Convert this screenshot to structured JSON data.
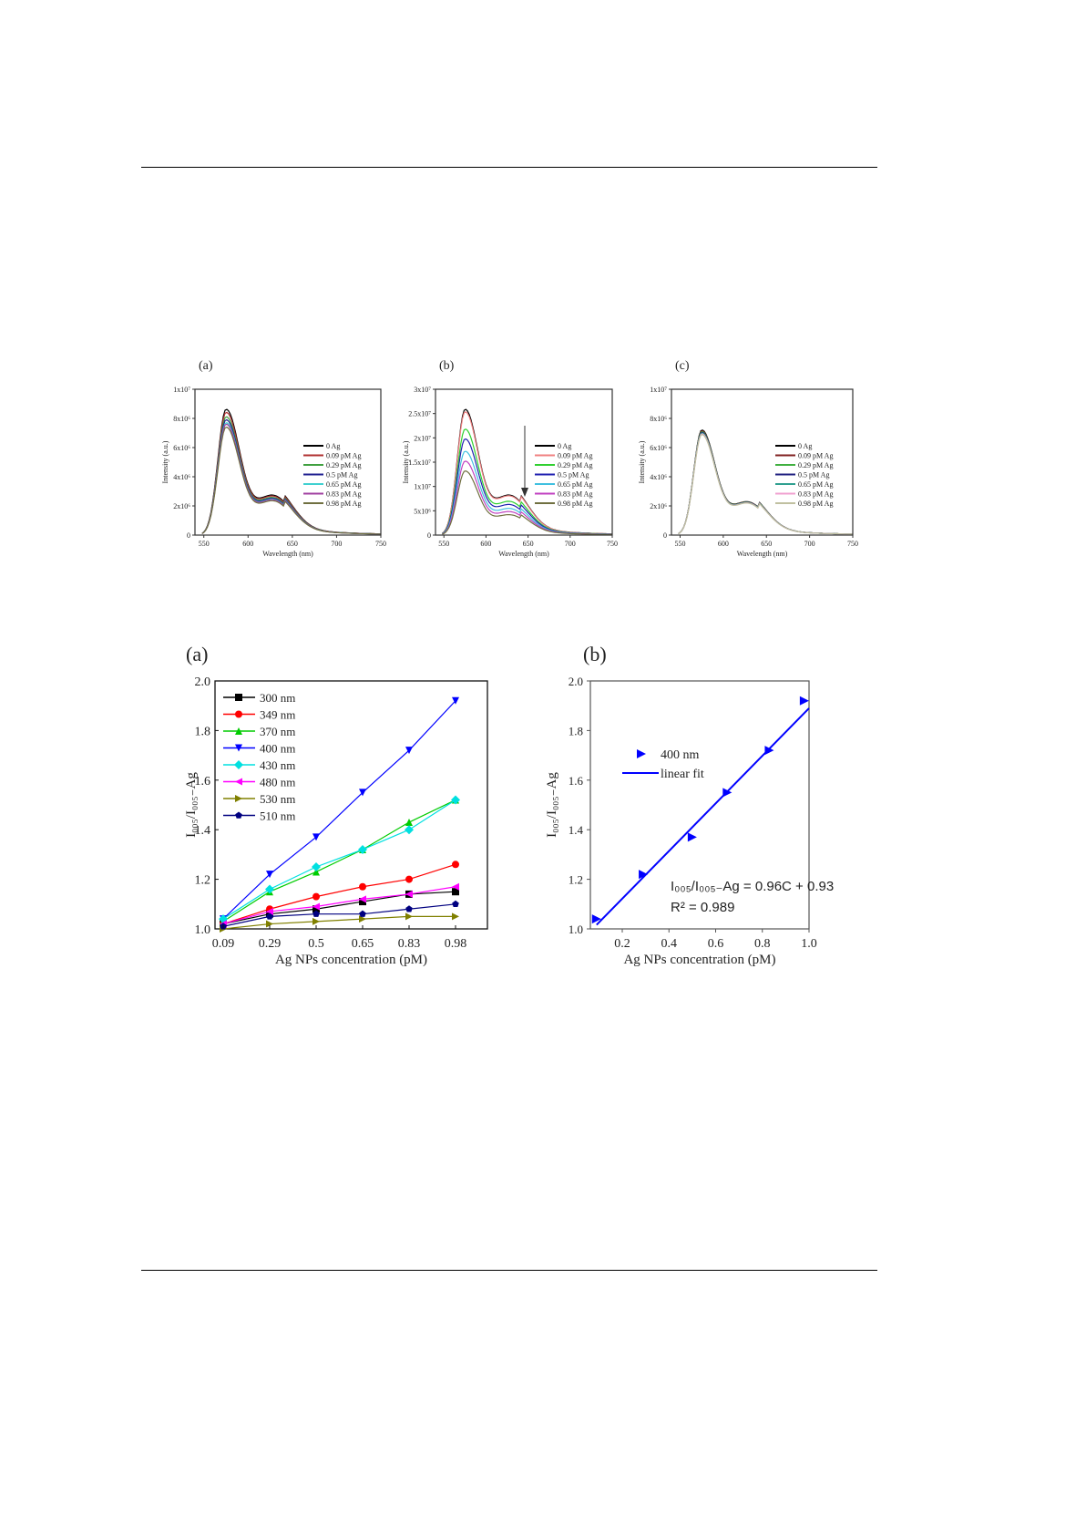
{
  "chart_data": [
    {
      "id": "fig1a",
      "type": "line",
      "panel_label": "(a)",
      "ylabel": "Intensity (a.u.)",
      "xlabel": "Wavelength (nm)",
      "xlim": [
        540,
        750
      ],
      "xticks": [
        550,
        600,
        650,
        700,
        750
      ],
      "ylim": [
        0,
        10000000.0
      ],
      "yticks": [
        {
          "v": 0,
          "label": "0"
        },
        {
          "v": 2000000.0,
          "label": "2x10⁶"
        },
        {
          "v": 4000000.0,
          "label": "4x10⁶"
        },
        {
          "v": 6000000.0,
          "label": "6x10⁶"
        },
        {
          "v": 8000000.0,
          "label": "8x10⁶"
        },
        {
          "v": 10000000.0,
          "label": "1x10⁷"
        }
      ],
      "peak_wavelength": 575,
      "series": [
        {
          "name": "0 Ag",
          "color": "#000000",
          "peak": 8500000.0
        },
        {
          "name": "0.09 pM Ag",
          "color": "#b03030",
          "peak": 8300000.0
        },
        {
          "name": "0.29 pM Ag",
          "color": "#40a040",
          "peak": 8000000.0
        },
        {
          "name": "0.5 pM Ag",
          "color": "#202090",
          "peak": 7800000.0
        },
        {
          "name": "0.65 pM Ag",
          "color": "#40d0d0",
          "peak": 7600000.0
        },
        {
          "name": "0.83 pM Ag",
          "color": "#a040a0",
          "peak": 7500000.0
        },
        {
          "name": "0.98 pM Ag",
          "color": "#707040",
          "peak": 7300000.0
        }
      ]
    },
    {
      "id": "fig1b",
      "type": "line",
      "panel_label": "(b)",
      "ylabel": "Intensity (a.u.)",
      "xlabel": "Wavelength (nm)",
      "xlim": [
        540,
        750
      ],
      "xticks": [
        550,
        600,
        650,
        700,
        750
      ],
      "ylim": [
        0,
        30000000.0
      ],
      "yticks": [
        {
          "v": 0,
          "label": "0"
        },
        {
          "v": 5000000.0,
          "label": "5x10⁶"
        },
        {
          "v": 10000000.0,
          "label": "1x10⁷"
        },
        {
          "v": 15000000.0,
          "label": "1.5x10⁷"
        },
        {
          "v": 20000000.0,
          "label": "2x10⁷"
        },
        {
          "v": 25000000.0,
          "label": "2.5x10⁷"
        },
        {
          "v": 30000000.0,
          "label": "3x10⁷"
        }
      ],
      "peak_wavelength": 575,
      "series": [
        {
          "name": "0 Ag",
          "color": "#000000",
          "peak": 25500000.0
        },
        {
          "name": "0.09 pM Ag",
          "color": "#f08080",
          "peak": 25000000.0
        },
        {
          "name": "0.29 pM Ag",
          "color": "#30d030",
          "peak": 21500000.0
        },
        {
          "name": "0.5 pM Ag",
          "color": "#2020b0",
          "peak": 19500000.0
        },
        {
          "name": "0.65 pM Ag",
          "color": "#40c0e0",
          "peak": 17000000.0
        },
        {
          "name": "0.83 pM Ag",
          "color": "#c040c0",
          "peak": 15000000.0
        },
        {
          "name": "0.98 pM Ag",
          "color": "#707040",
          "peak": 13000000.0
        }
      ]
    },
    {
      "id": "fig1c",
      "type": "line",
      "panel_label": "(c)",
      "ylabel": "Intensity (a.u.)",
      "xlabel": "Wavelength (nm)",
      "xlim": [
        540,
        750
      ],
      "xticks": [
        550,
        600,
        650,
        700,
        750
      ],
      "ylim": [
        0,
        10000000.0
      ],
      "yticks": [
        {
          "v": 0,
          "label": "0"
        },
        {
          "v": 2000000.0,
          "label": "2x10⁶"
        },
        {
          "v": 4000000.0,
          "label": "4x10⁶"
        },
        {
          "v": 6000000.0,
          "label": "6x10⁶"
        },
        {
          "v": 8000000.0,
          "label": "8x10⁶"
        },
        {
          "v": 10000000.0,
          "label": "1x10⁷"
        }
      ],
      "peak_wavelength": 575,
      "series": [
        {
          "name": "0 Ag",
          "color": "#000000",
          "peak": 7100000.0
        },
        {
          "name": "0.09 pM Ag",
          "color": "#802020",
          "peak": 7050000.0
        },
        {
          "name": "0.29 pM Ag",
          "color": "#40b040",
          "peak": 7000000.0
        },
        {
          "name": "0.5 pM Ag",
          "color": "#202080",
          "peak": 6950000.0
        },
        {
          "name": "0.65 pM Ag",
          "color": "#30a090",
          "peak": 6900000.0
        },
        {
          "name": "0.83 pM Ag",
          "color": "#f0a0d0",
          "peak": 6850000.0
        },
        {
          "name": "0.98 pM Ag",
          "color": "#c0c0a0",
          "peak": 6800000.0
        }
      ]
    },
    {
      "id": "fig2a",
      "type": "line",
      "panel_label": "(a)",
      "ylabel": "I₀₀₅/I₀₀₅₋Ag",
      "xlabel": "Ag NPs concentration (pM)",
      "categories": [
        "0.09",
        "0.29",
        "0.5",
        "0.65",
        "0.83",
        "0.98"
      ],
      "ylim": [
        1.0,
        2.0
      ],
      "yticks": [
        "1.0",
        "1.2",
        "1.4",
        "1.6",
        "1.8",
        "2.0"
      ],
      "series": [
        {
          "name": "300 nm",
          "color": "#000000",
          "marker": "square",
          "values": [
            1.02,
            1.06,
            1.08,
            1.11,
            1.14,
            1.15
          ]
        },
        {
          "name": "349 nm",
          "color": "#ff0000",
          "marker": "circle",
          "values": [
            1.02,
            1.08,
            1.13,
            1.17,
            1.2,
            1.26
          ]
        },
        {
          "name": "370 nm",
          "color": "#00cc00",
          "marker": "triangle-up",
          "values": [
            1.03,
            1.15,
            1.23,
            1.32,
            1.43,
            1.52
          ]
        },
        {
          "name": "400 nm",
          "color": "#0000ff",
          "marker": "triangle-down",
          "values": [
            1.04,
            1.22,
            1.37,
            1.55,
            1.72,
            1.92
          ]
        },
        {
          "name": "430 nm",
          "color": "#00e0e0",
          "marker": "diamond",
          "values": [
            1.04,
            1.16,
            1.25,
            1.32,
            1.4,
            1.52
          ]
        },
        {
          "name": "480 nm",
          "color": "#ff00ff",
          "marker": "triangle-left",
          "values": [
            1.02,
            1.07,
            1.09,
            1.12,
            1.14,
            1.17
          ]
        },
        {
          "name": "530 nm",
          "color": "#808000",
          "marker": "triangle-right",
          "values": [
            1.0,
            1.02,
            1.03,
            1.04,
            1.05,
            1.05
          ]
        },
        {
          "name": "510 nm",
          "color": "#000080",
          "marker": "pentagon",
          "values": [
            1.01,
            1.05,
            1.06,
            1.06,
            1.08,
            1.1
          ]
        }
      ]
    },
    {
      "id": "fig2b",
      "type": "scatter",
      "panel_label": "(b)",
      "ylabel": "I₀₀₅/I₀₀₅₋Ag",
      "xlabel": "Ag NPs concentration (pM)",
      "xlim": [
        0.06,
        1.0
      ],
      "ylim": [
        1.0,
        2.0
      ],
      "xticks": [
        "0.2",
        "0.4",
        "0.6",
        "0.8",
        "1.0"
      ],
      "yticks": [
        "1.0",
        "1.2",
        "1.4",
        "1.6",
        "1.8",
        "2.0"
      ],
      "series": [
        {
          "name": "400 nm",
          "color": "#0000ff",
          "marker": "triangle-right",
          "x": [
            0.09,
            0.29,
            0.5,
            0.65,
            0.83,
            0.98
          ],
          "y": [
            1.04,
            1.22,
            1.37,
            1.55,
            1.72,
            1.92
          ]
        }
      ],
      "fit": {
        "name": "linear fit",
        "color": "#0000ff",
        "slope": 0.96,
        "intercept": 0.93,
        "x": [
          0.09,
          1.0
        ]
      },
      "annotations": [
        "I₀₀₅/I₀₀₅₋Ag = 0.96C + 0.93",
        "R² = 0.989"
      ]
    }
  ]
}
